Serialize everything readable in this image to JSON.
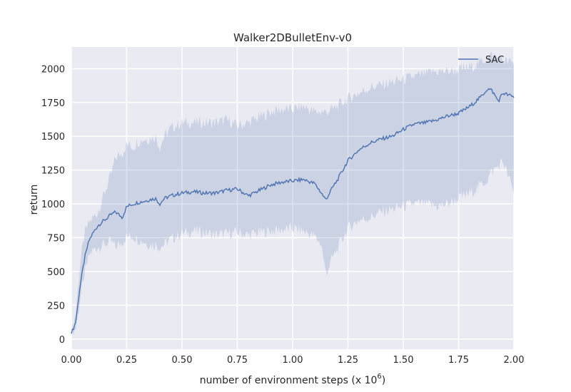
{
  "chart_data": {
    "type": "line",
    "title": "Walker2DBulletEnv-v0",
    "xlabel_prefix": "number of environment steps (x 10",
    "xlabel_exponent": "6",
    "xlabel_suffix": ")",
    "ylabel": "return",
    "xlim": [
      0.0,
      2.0
    ],
    "ylim": [
      -75,
      2160
    ],
    "x_ticks": [
      0.0,
      0.25,
      0.5,
      0.75,
      1.0,
      1.25,
      1.5,
      1.75,
      2.0
    ],
    "x_tick_labels": [
      "0.00",
      "0.25",
      "0.50",
      "0.75",
      "1.00",
      "1.25",
      "1.50",
      "1.75",
      "2.00"
    ],
    "y_ticks": [
      0,
      250,
      500,
      750,
      1000,
      1250,
      1500,
      1750,
      2000
    ],
    "y_tick_labels": [
      "0",
      "250",
      "500",
      "750",
      "1000",
      "1250",
      "1500",
      "1750",
      "2000"
    ],
    "grid": true,
    "legend_position": "top-right",
    "colors": {
      "plot_background": "#eaeaf2",
      "grid": "#ffffff",
      "series_line": "#4c72b0",
      "band_fill": "#4c72b0"
    },
    "series": [
      {
        "name": "SAC",
        "x": [
          0.0,
          0.02,
          0.04,
          0.06,
          0.08,
          0.1,
          0.12,
          0.15,
          0.18,
          0.2,
          0.23,
          0.25,
          0.28,
          0.3,
          0.33,
          0.35,
          0.38,
          0.4,
          0.42,
          0.45,
          0.5,
          0.55,
          0.6,
          0.65,
          0.7,
          0.75,
          0.8,
          0.85,
          0.9,
          0.95,
          1.0,
          1.05,
          1.1,
          1.13,
          1.15,
          1.18,
          1.2,
          1.25,
          1.3,
          1.35,
          1.4,
          1.45,
          1.5,
          1.55,
          1.6,
          1.65,
          1.7,
          1.75,
          1.8,
          1.85,
          1.88,
          1.9,
          1.93,
          1.95,
          2.0
        ],
        "values": [
          40,
          130,
          400,
          600,
          730,
          790,
          840,
          880,
          920,
          940,
          900,
          980,
          1000,
          1010,
          1020,
          1030,
          1040,
          1000,
          1040,
          1060,
          1080,
          1090,
          1080,
          1080,
          1100,
          1110,
          1060,
          1100,
          1140,
          1160,
          1170,
          1180,
          1150,
          1080,
          1030,
          1120,
          1170,
          1320,
          1400,
          1450,
          1480,
          1500,
          1550,
          1590,
          1600,
          1620,
          1650,
          1670,
          1720,
          1790,
          1850,
          1840,
          1760,
          1820,
          1790
        ],
        "lower": [
          40,
          80,
          300,
          480,
          620,
          660,
          680,
          700,
          720,
          680,
          720,
          760,
          760,
          740,
          720,
          700,
          700,
          680,
          700,
          740,
          780,
          800,
          790,
          770,
          780,
          790,
          770,
          790,
          800,
          810,
          820,
          800,
          760,
          700,
          480,
          600,
          660,
          820,
          880,
          900,
          940,
          960,
          980,
          1000,
          1000,
          980,
          1000,
          1040,
          1080,
          1140,
          1180,
          1240,
          1280,
          1320,
          1080
        ],
        "upper": [
          40,
          200,
          560,
          780,
          860,
          900,
          940,
          1080,
          1220,
          1340,
          1380,
          1440,
          1420,
          1460,
          1480,
          1480,
          1500,
          1420,
          1500,
          1560,
          1600,
          1600,
          1600,
          1600,
          1620,
          1580,
          1600,
          1640,
          1680,
          1700,
          1700,
          1720,
          1680,
          1680,
          1680,
          1700,
          1720,
          1780,
          1820,
          1860,
          1880,
          1900,
          1920,
          1940,
          1960,
          1980,
          1980,
          1990,
          2010,
          2050,
          2080,
          2100,
          2080,
          2060,
          2040
        ]
      }
    ]
  }
}
